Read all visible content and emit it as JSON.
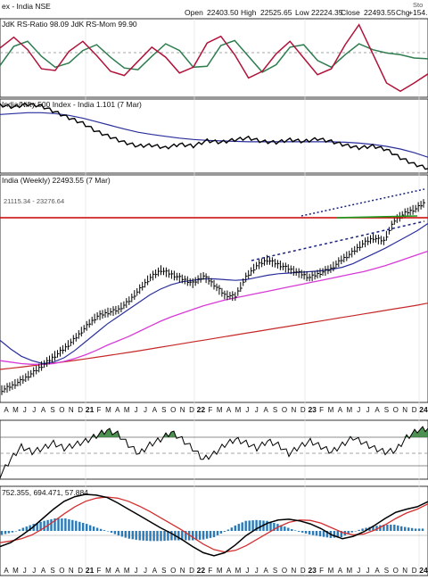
{
  "header": {
    "title": "ex - India NSE",
    "open_label": "Open",
    "open": "22403.50",
    "high_label": "High",
    "high": "22525.65",
    "low_label": "Low",
    "low": "22224.35",
    "close_label": "Close",
    "close": "22493.55",
    "chg_label": "Chg",
    "chg": "+154.",
    "watermark": "Sto"
  },
  "colors": {
    "price_bar": "#000000",
    "ma_blue": "#2a2f9b",
    "ma_magenta": "#d63bd6",
    "ma_red": "#c62828",
    "resistance": "#cc0000",
    "support_green": "#1e9b1e",
    "trend_dotted": "#1a237e",
    "rs_ratio": "#b0133a",
    "rs_mom": "#2e7d4f",
    "macd_line": "#000000",
    "signal_line": "#d32f2f",
    "histogram": "#2a7ab8",
    "pos_fill": "#2e7d32"
  },
  "chart_data": [
    {
      "type": "line",
      "title": "JdK RS-Ratio 98.09 JdK RS-Mom 99.90",
      "series": [
        {
          "name": "JdK RS-Ratio",
          "values": [
            101.2,
            102.5,
            101.0,
            98.7,
            98.5,
            100.8,
            102.0,
            100.3,
            98.4,
            97.9,
            99.6,
            101.3,
            100.1,
            98.2,
            98.9,
            101.8,
            102.6,
            100.4,
            97.6,
            98.4,
            100.5,
            102.0,
            100.0,
            98.0,
            98.7,
            101.6,
            104.0,
            100.5,
            97.0,
            96.0,
            97.0,
            98.09
          ]
        },
        {
          "name": "JdK RS-Mom",
          "values": [
            99.1,
            101.4,
            102.0,
            100.2,
            98.9,
            99.4,
            100.9,
            101.6,
            100.1,
            98.8,
            98.6,
            100.2,
            101.7,
            100.9,
            98.9,
            99.0,
            101.5,
            102.1,
            100.2,
            98.3,
            99.2,
            101.3,
            101.6,
            99.7,
            98.9,
            100.4,
            101.7,
            101.0,
            100.6,
            100.4,
            100.0,
            99.9
          ]
        }
      ]
    },
    {
      "type": "line",
      "title": "India/Nifty 500 Index - India 1.101 (7 Mar)",
      "series": [
        {
          "name": "Ratio",
          "values": [
            1.24,
            1.236,
            1.242,
            1.238,
            1.225,
            1.212,
            1.2,
            1.182,
            1.17,
            1.158,
            1.15,
            1.152,
            1.146,
            1.154,
            1.15,
            1.162,
            1.158,
            1.164,
            1.168,
            1.16,
            1.158,
            1.164,
            1.16,
            1.166,
            1.16,
            1.152,
            1.146,
            1.15,
            1.142,
            1.124,
            1.11,
            1.101
          ]
        },
        {
          "name": "Moving Average",
          "values": [
            1.22,
            1.222,
            1.224,
            1.224,
            1.222,
            1.218,
            1.212,
            1.204,
            1.196,
            1.188,
            1.181,
            1.176,
            1.172,
            1.168,
            1.165,
            1.163,
            1.162,
            1.161,
            1.16,
            1.16,
            1.16,
            1.16,
            1.16,
            1.16,
            1.16,
            1.159,
            1.157,
            1.154,
            1.15,
            1.144,
            1.136,
            1.126
          ]
        }
      ]
    },
    {
      "type": "line",
      "title": "India (Weekly) 22493.55 (7 Mar)",
      "subtitle": "21115.34 - 23276.64",
      "series": [
        {
          "name": "Price",
          "values": [
            9580,
            9900,
            10310,
            10820,
            11370,
            11930,
            12500,
            13200,
            13980,
            14650,
            14900,
            15100,
            15700,
            16500,
            17300,
            17800,
            17500,
            17200,
            16900,
            17400,
            16800,
            16100,
            16000,
            17300,
            18100,
            18500,
            18200,
            17900,
            17600,
            17300,
            17600,
            17900,
            18500,
            19000,
            19600,
            20000,
            19800,
            21200,
            21700,
            22000,
            22493.55
          ]
        },
        {
          "name": "MA Blue",
          "values": [
            13000,
            12400,
            11900,
            11600,
            11400,
            11500,
            11800,
            12300,
            12900,
            13500,
            14100,
            14600,
            15100,
            15600,
            16100,
            16500,
            16800,
            17000,
            17100,
            17200,
            17200,
            17150,
            17100,
            17150,
            17300,
            17450,
            17550,
            17600,
            17650,
            17700,
            17750,
            17850,
            18000,
            18250,
            18600,
            18950,
            19300,
            19700,
            20100,
            20500,
            21000
          ]
        },
        {
          "name": "MA Magenta",
          "values": [
            11600,
            11500,
            11400,
            11350,
            11350,
            11400,
            11550,
            11750,
            12000,
            12300,
            12650,
            12950,
            13250,
            13600,
            13950,
            14300,
            14600,
            14850,
            15100,
            15350,
            15550,
            15750,
            15900,
            16050,
            16200,
            16350,
            16500,
            16650,
            16800,
            16950,
            17100,
            17250,
            17400,
            17550,
            17700,
            17900,
            18100,
            18350,
            18600,
            18850,
            19100
          ]
        },
        {
          "name": "MA Red",
          "values": [
            11000,
            11080,
            11160,
            11250,
            11340,
            11430,
            11520,
            11620,
            11720,
            11830,
            11940,
            12050,
            12160,
            12280,
            12400,
            12520,
            12640,
            12760,
            12880,
            13000,
            13120,
            13240,
            13360,
            13480,
            13600,
            13720,
            13840,
            13960,
            14080,
            14200,
            14320,
            14440,
            14560,
            14680,
            14800,
            14920,
            15040,
            15160,
            15280,
            15400,
            15540
          ]
        }
      ]
    },
    {
      "type": "line",
      "title": "",
      "series": [
        {
          "name": "Oscillator",
          "values": [
            -1.5,
            -0.6,
            0.1,
            -0.2,
            0.0,
            0.3,
            0.0,
            0.2,
            0.4,
            0.7,
            1.0,
            0.8,
            0.2,
            -0.3,
            0.2,
            0.5,
            0.9,
            0.5,
            0.0,
            -0.6,
            -0.3,
            0.2,
            0.5,
            0.3,
            0.0,
            0.4,
            0.2,
            -0.3,
            0.1,
            0.4,
            0.1,
            -0.2,
            0.2,
            0.6,
            0.3,
            0.0,
            -0.2,
            -0.1,
            0.6,
            1.0,
            1.1
          ]
        }
      ]
    },
    {
      "type": "line",
      "title": "752.355, 694.471, 57.884",
      "series": [
        {
          "name": "MACD",
          "values": [
            -400,
            -300,
            -120,
            80,
            320,
            560,
            760,
            880,
            940,
            920,
            860,
            720,
            560,
            400,
            240,
            80,
            -60,
            -220,
            -400,
            -560,
            -640,
            -560,
            -360,
            -120,
            60,
            200,
            280,
            300,
            260,
            180,
            60,
            -100,
            -200,
            -140,
            -20,
            140,
            320,
            480,
            560,
            620,
            752.355
          ]
        },
        {
          "name": "Signal",
          "values": [
            -300,
            -260,
            -200,
            -100,
            60,
            240,
            440,
            620,
            760,
            840,
            870,
            840,
            760,
            640,
            500,
            340,
            180,
            20,
            -160,
            -340,
            -480,
            -540,
            -500,
            -380,
            -220,
            -60,
            100,
            220,
            280,
            270,
            200,
            80,
            -40,
            -100,
            -80,
            20,
            160,
            320,
            460,
            560,
            694.471
          ]
        },
        {
          "name": "Histogram",
          "values": [
            -100,
            -40,
            80,
            180,
            260,
            320,
            320,
            260,
            180,
            80,
            -10,
            -120,
            -200,
            -240,
            -260,
            -260,
            -240,
            -240,
            -240,
            -220,
            -160,
            -20,
            140,
            260,
            280,
            260,
            180,
            80,
            -20,
            -90,
            -140,
            -180,
            -160,
            -40,
            60,
            120,
            160,
            160,
            100,
            60,
            57.884
          ]
        }
      ]
    }
  ],
  "x_ticks": [
    "A",
    "M",
    "J",
    "J",
    "A",
    "S",
    "O",
    "N",
    "D",
    "21",
    "F",
    "M",
    "A",
    "M",
    "J",
    "J",
    "A",
    "S",
    "O",
    "N",
    "D",
    "22",
    "F",
    "M",
    "A",
    "M",
    "J",
    "J",
    "A",
    "S",
    "O",
    "N",
    "D",
    "23",
    "F",
    "M",
    "A",
    "M",
    "J",
    "J",
    "A",
    "S",
    "O",
    "N",
    "D",
    "24"
  ]
}
